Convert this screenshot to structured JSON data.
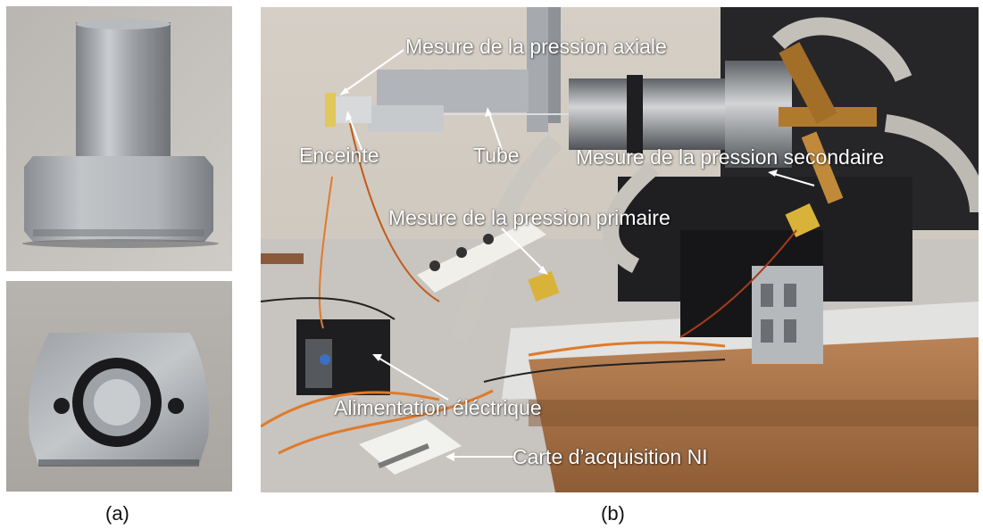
{
  "captions": {
    "a": "(a)",
    "b": "(b)"
  },
  "labels": {
    "axial": "Mesure de la pression axiale",
    "enceinte": "Enceinte",
    "tube": "Tube",
    "secondaire": "Mesure de la pression secondaire",
    "primaire": "Mesure de la pression primaire",
    "alimentation": "Alimentation éléctrique",
    "carte": "Carte d’acquisition NI"
  },
  "colors": {
    "background_wall": "#cfc8bf",
    "aluminium": "#a9adb1",
    "machine_dark": "#2b2b2e",
    "table_top": "#dcdcdc",
    "wood_table": "#a9744a",
    "brass": "#b07a2e",
    "orange_wire": "#e07a2a",
    "sensor_yellow": "#d9b23a",
    "label_text": "#ffffff"
  }
}
